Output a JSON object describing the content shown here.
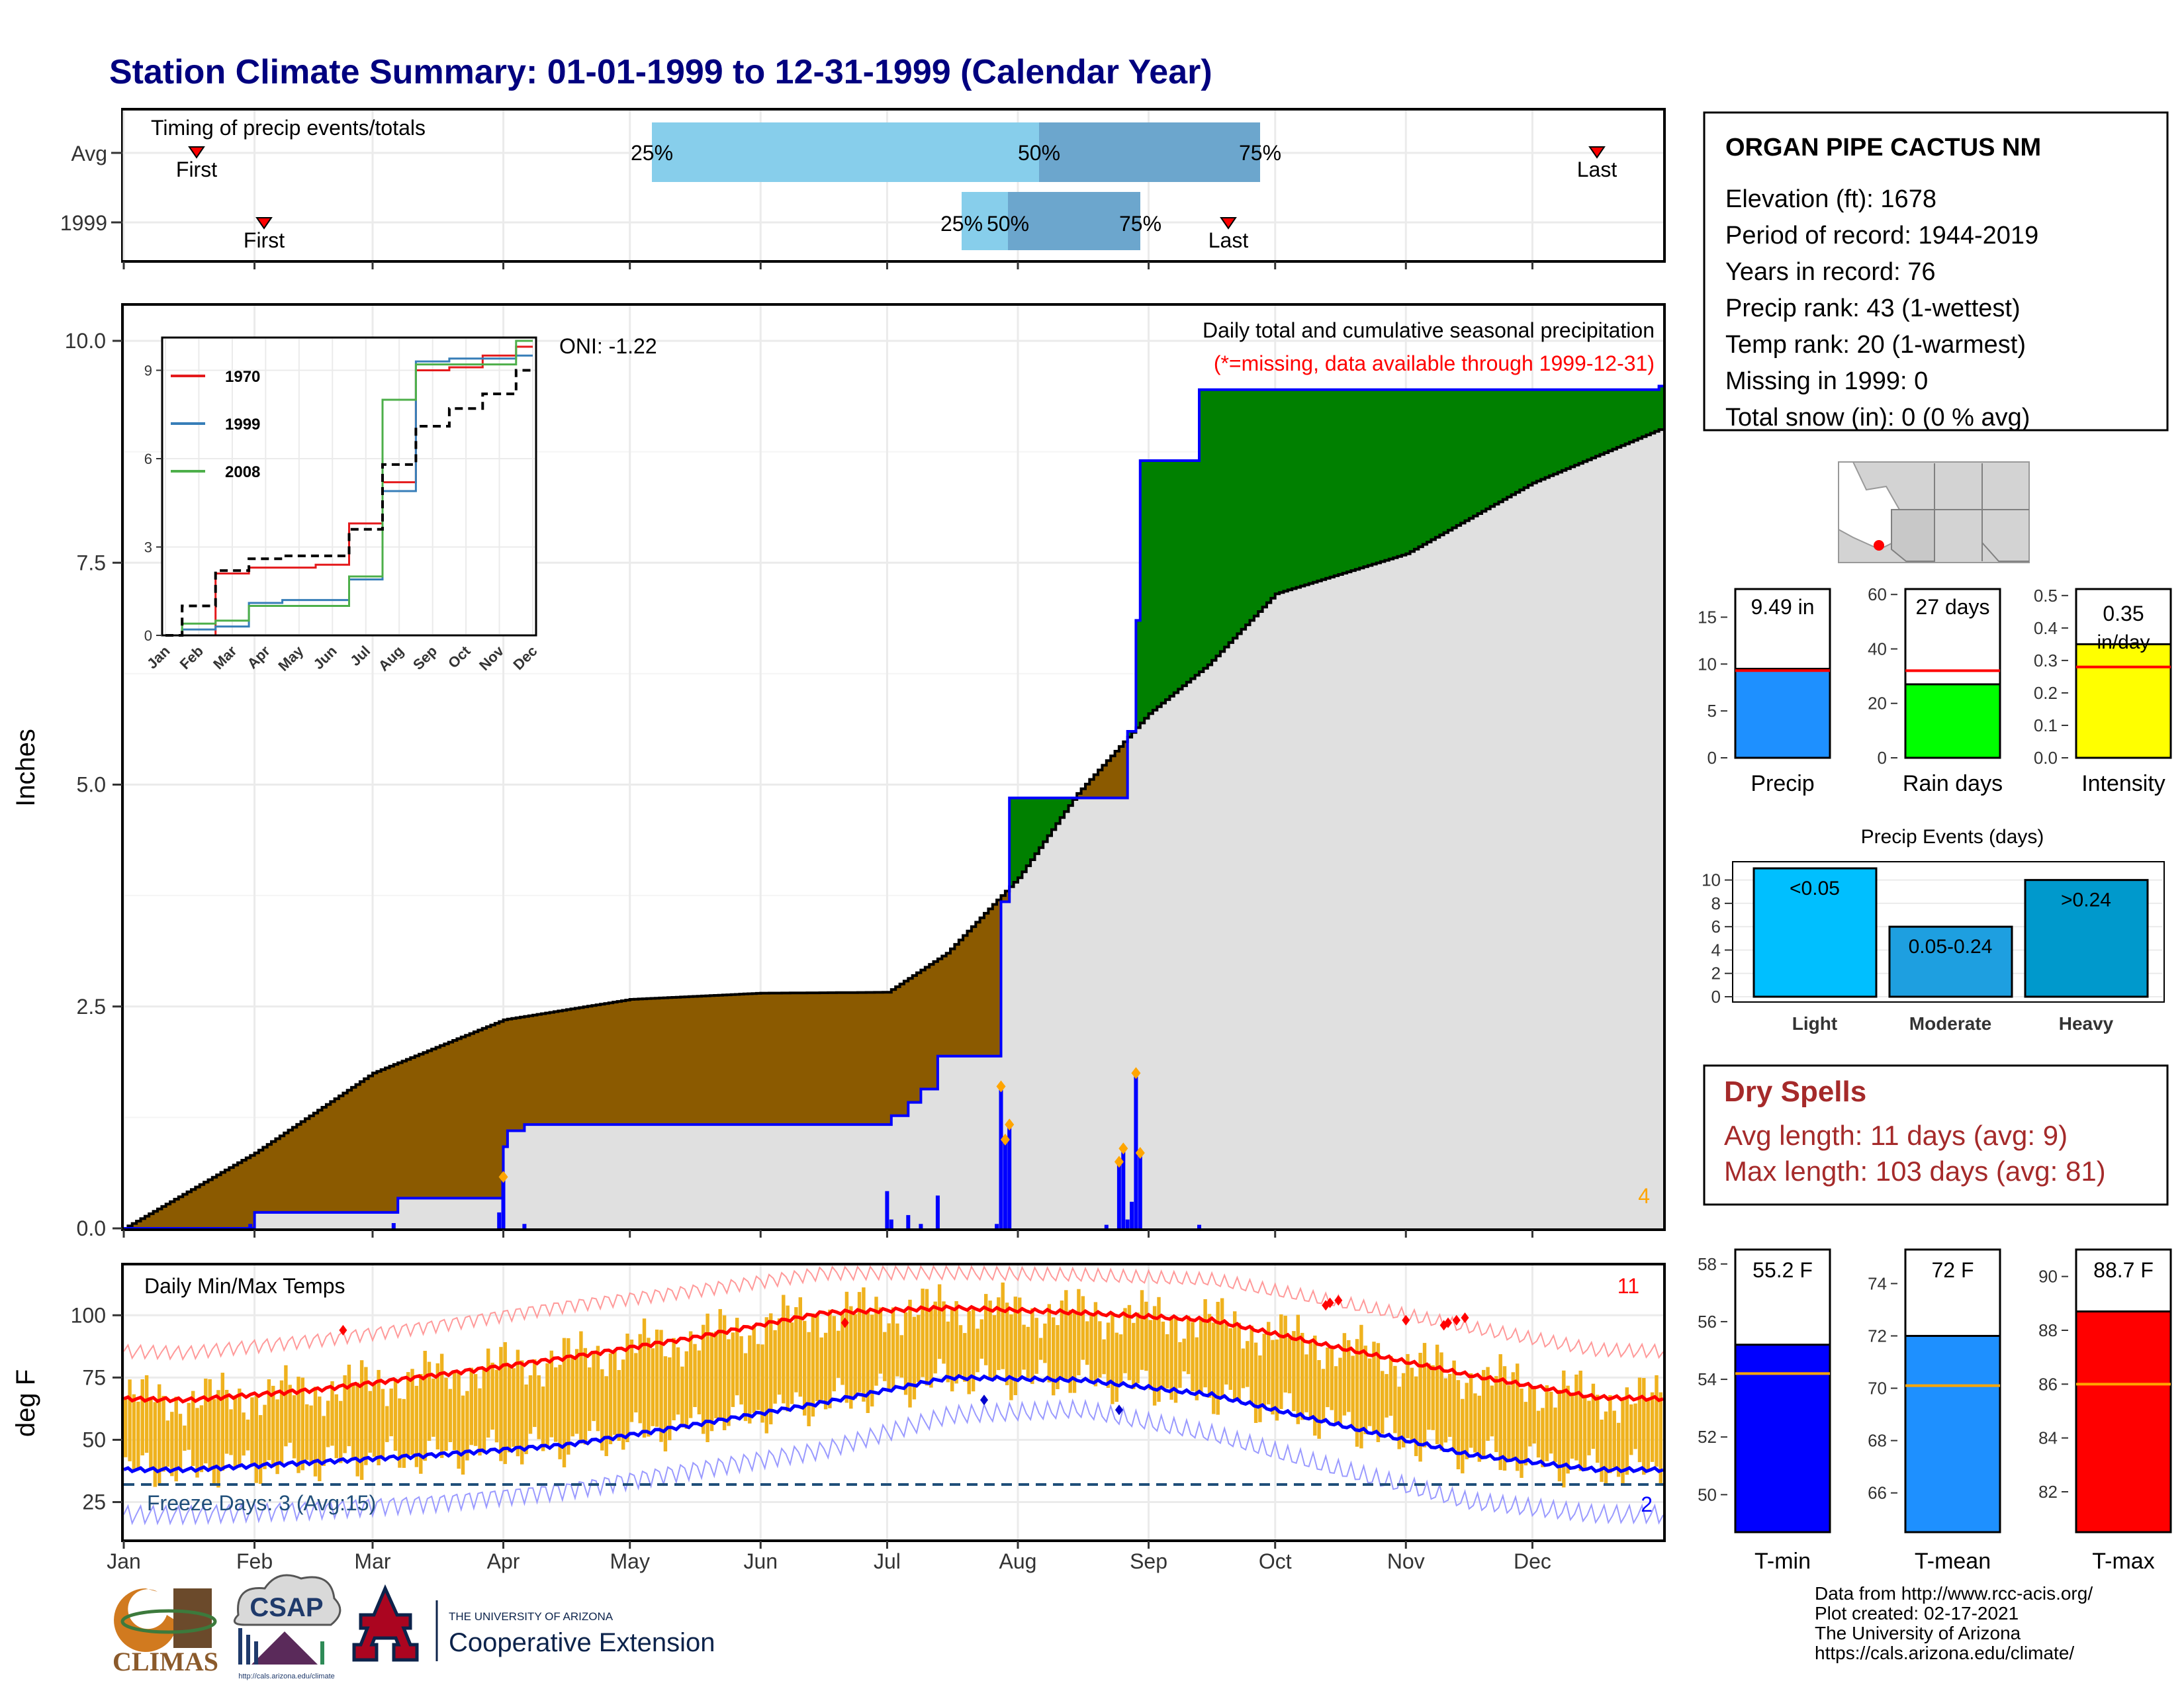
{
  "title": "Station Climate Summary: 01-01-1999 to 12-31-1999 (Calendar Year)",
  "station": {
    "name": "ORGAN PIPE CACTUS NM",
    "lines": [
      "Elevation (ft): 1678",
      "Period of record: 1944-2019",
      "Years in record: 76",
      "Precip rank: 43 (1-wettest)",
      "Temp rank: 20 (1-warmest)",
      "Missing in 1999: 0",
      "Total snow (in): 0 (0 % avg)"
    ]
  },
  "colors": {
    "title": "#00007F",
    "precip_1999": "#0000FF",
    "wet_fill": "#008000",
    "dry_fill": "#8B5A00",
    "avg_fill": "#E0E0E0",
    "tmax_bar": "#EFB21E",
    "accent_red": "#FF0000",
    "dry_spell_text": "#A52A2A"
  },
  "timing": {
    "label": "Timing of precip events/totals",
    "rows": [
      "Avg",
      "1999"
    ],
    "first_label": "First",
    "last_label": "Last",
    "pct_labels": [
      "25%",
      "50%",
      "75%"
    ]
  },
  "months": [
    "Jan",
    "Feb",
    "Mar",
    "Apr",
    "May",
    "Jun",
    "Jul",
    "Aug",
    "Sep",
    "Oct",
    "Nov",
    "Dec"
  ],
  "precip_panel": {
    "ylabel": "Inches",
    "yticks": [
      "0.0",
      "2.5",
      "5.0",
      "7.5",
      "10.0"
    ],
    "oni_text": "ONI: -1.22",
    "caption": "Daily total and cumulative seasonal precipitation",
    "missing_note": "(*=missing, data available through 1999-12-31)",
    "corner_count": "4"
  },
  "inset": {
    "legend": [
      "1970",
      "1999",
      "2008"
    ],
    "yticks": [
      "0",
      "3",
      "6",
      "9"
    ],
    "xticks": [
      "Jan",
      "Feb",
      "Mar",
      "Apr",
      "May",
      "Jun",
      "Jul",
      "Aug",
      "Sep",
      "Oct",
      "Nov",
      "Dec"
    ]
  },
  "temp_panel": {
    "label": "Daily Min/Max Temps",
    "ylabel": "deg F",
    "yticks": [
      "25",
      "50",
      "75",
      "100"
    ],
    "max_count": "11",
    "freeze_text": "Freeze Days: 3 (Avg:15)",
    "min_count": "2"
  },
  "summary_bars": {
    "precip": {
      "label": "Precip",
      "value_text": "9.49 in",
      "yticks": [
        "0",
        "5",
        "10",
        "15"
      ]
    },
    "raindays": {
      "label": "Rain days",
      "value_text": "27 days",
      "yticks": [
        "0",
        "20",
        "40",
        "60"
      ]
    },
    "intensity": {
      "label": "Intensity",
      "value_text": "0.35",
      "value_text2": "in/day",
      "yticks": [
        "0.0",
        "0.1",
        "0.2",
        "0.3",
        "0.4",
        "0.5"
      ]
    }
  },
  "events": {
    "title": "Precip Events (days)",
    "categories": [
      "Light",
      "Moderate",
      "Heavy"
    ],
    "bar_labels": [
      "<0.05",
      "0.05-0.24",
      ">0.24"
    ],
    "yticks": [
      "0",
      "2",
      "4",
      "6",
      "8",
      "10"
    ]
  },
  "dry_spells": {
    "title": "Dry Spells",
    "avg_line": "Avg length: 11 days (avg: 9)",
    "max_line": "Max length: 103 days (avg: 81)"
  },
  "temp_bars": {
    "tmin": {
      "label": "T-min",
      "value_text": "55.2 F",
      "yticks": [
        "50",
        "52",
        "54",
        "56",
        "58"
      ]
    },
    "tmean": {
      "label": "T-mean",
      "value_text": "72 F",
      "yticks": [
        "66",
        "68",
        "70",
        "72",
        "74"
      ]
    },
    "tmax": {
      "label": "T-max",
      "value_text": "88.7 F",
      "yticks": [
        "82",
        "84",
        "86",
        "88",
        "90"
      ]
    }
  },
  "credits": [
    "Data from http://www.rcc-acis.org/",
    "Plot created: 02-17-2021",
    "The University of Arizona",
    "https://cals.arizona.edu/climate/"
  ],
  "logos": {
    "climas": "CLIMAS",
    "csap": "CSAP",
    "csap_url": "http://cals.arizona.edu/climate",
    "ua_small": "THE UNIVERSITY OF ARIZONA",
    "ua_big": "Cooperative Extension"
  },
  "chart_data": [
    {
      "type": "area",
      "title": "Daily total and cumulative seasonal precipitation",
      "xlabel": "",
      "ylabel": "Inches",
      "ylim": [
        0,
        10.5
      ],
      "x_range": [
        "1999-01-01",
        "1999-12-31"
      ],
      "series": [
        {
          "name": "1999 cumulative",
          "x": [
            "1999-01-01",
            "1999-01-31",
            "1999-02-01",
            "1999-03-06",
            "1999-03-07",
            "1999-03-31",
            "1999-04-01",
            "1999-04-02",
            "1999-04-06",
            "1999-07-01",
            "1999-07-02",
            "1999-07-06",
            "1999-07-09",
            "1999-07-13",
            "1999-07-17",
            "1999-07-27",
            "1999-07-28",
            "1999-07-30",
            "1999-08-25",
            "1999-08-27",
            "1999-08-29",
            "1999-08-30",
            "1999-09-13",
            "1999-12-31"
          ],
          "values": [
            0,
            0,
            0.18,
            0.18,
            0.34,
            0.34,
            0.92,
            1.1,
            1.17,
            1.17,
            1.27,
            1.42,
            1.57,
            1.94,
            1.94,
            1.94,
            3.68,
            4.85,
            4.85,
            5.6,
            6.85,
            8.65,
            9.45,
            9.49
          ]
        },
        {
          "name": "Average cumulative",
          "x": [
            "1999-01-01",
            "1999-02-01",
            "1999-03-01",
            "1999-04-01",
            "1999-05-01",
            "1999-06-01",
            "1999-07-01",
            "1999-07-15",
            "1999-08-01",
            "1999-08-15",
            "1999-09-01",
            "1999-09-15",
            "1999-10-01",
            "1999-11-01",
            "1999-12-01",
            "1999-12-31"
          ],
          "values": [
            0,
            0.85,
            1.75,
            2.35,
            2.58,
            2.65,
            2.66,
            3.1,
            3.95,
            4.9,
            5.8,
            6.35,
            7.15,
            7.6,
            8.4,
            9.0
          ]
        }
      ],
      "daily_bars": {
        "name": "1999 daily",
        "x": [
          "1999-01-31",
          "1999-03-06",
          "1999-03-31",
          "1999-04-01",
          "1999-04-06",
          "1999-07-01",
          "1999-07-02",
          "1999-07-06",
          "1999-07-09",
          "1999-07-13",
          "1999-07-27",
          "1999-07-28",
          "1999-07-29",
          "1999-07-30",
          "1999-08-22",
          "1999-08-25",
          "1999-08-26",
          "1999-08-27",
          "1999-08-28",
          "1999-08-29",
          "1999-08-30",
          "1999-09-13"
        ],
        "values": [
          0.05,
          0.06,
          0.18,
          0.58,
          0.05,
          0.42,
          0.1,
          0.15,
          0.05,
          0.37,
          0.05,
          1.6,
          1.0,
          1.17,
          0.04,
          0.75,
          0.9,
          0.1,
          0.3,
          1.75,
          0.85,
          0.04
        ]
      },
      "oni": -1.22
    },
    {
      "type": "line",
      "title": "",
      "ylim": [
        0,
        10
      ],
      "yticks": [
        0,
        3,
        6,
        9
      ],
      "categories": [
        "Jan",
        "Feb",
        "Mar",
        "Apr",
        "May",
        "Jun",
        "Jul",
        "Aug",
        "Sep",
        "Oct",
        "Nov",
        "Dec"
      ],
      "series": [
        {
          "name": "1970",
          "values": [
            0,
            0,
            2.1,
            2.3,
            2.3,
            2.4,
            3.8,
            5.2,
            9.0,
            9.1,
            9.5,
            9.8
          ]
        },
        {
          "name": "1999",
          "values": [
            0,
            0.2,
            0.3,
            1.1,
            1.2,
            1.2,
            1.9,
            4.9,
            9.3,
            9.4,
            9.4,
            9.5
          ]
        },
        {
          "name": "2008",
          "values": [
            0,
            0.4,
            0.5,
            1.0,
            1.0,
            1.0,
            2.0,
            8.0,
            9.2,
            9.2,
            9.2,
            10.0
          ]
        },
        {
          "values": [
            0,
            1.0,
            2.2,
            2.6,
            2.7,
            2.7,
            3.6,
            5.8,
            7.1,
            7.7,
            8.2,
            9.0
          ]
        }
      ]
    },
    {
      "type": "bar",
      "title": "Daily Min/Max Temps",
      "ylabel": "deg F",
      "ylim": [
        10,
        120
      ],
      "categories": [
        "Jan",
        "Feb",
        "Mar",
        "Apr",
        "May",
        "Jun",
        "Jul",
        "Aug",
        "Sep",
        "Oct",
        "Nov",
        "Dec"
      ],
      "series": [
        {
          "name": "Avg max",
          "values": [
            66,
            70,
            76,
            83,
            91,
            101,
            103,
            101,
            98,
            87,
            76,
            67
          ]
        },
        {
          "name": "Avg min",
          "values": [
            38,
            41,
            44,
            48,
            56,
            65,
            75,
            74,
            68,
            56,
            44,
            38
          ]
        },
        {
          "name": "Record max",
          "values": [
            85,
            90,
            96,
            104,
            110,
            117,
            117,
            116,
            114,
            105,
            95,
            86
          ]
        },
        {
          "name": "Record min",
          "values": [
            20,
            22,
            25,
            30,
            38,
            46,
            60,
            62,
            52,
            38,
            25,
            20
          ]
        }
      ],
      "freeze_days": 3,
      "freeze_days_avg": 15
    },
    {
      "type": "bar",
      "categories": [
        "Precip"
      ],
      "values": [
        9.49
      ],
      "average": 9.3,
      "ylim": [
        0,
        18
      ]
    },
    {
      "type": "bar",
      "categories": [
        "Rain days"
      ],
      "values": [
        27
      ],
      "average": 32,
      "ylim": [
        0,
        62
      ]
    },
    {
      "type": "bar",
      "categories": [
        "Intensity"
      ],
      "values": [
        0.35
      ],
      "average": 0.28,
      "ylim": [
        0,
        0.52
      ]
    },
    {
      "type": "bar",
      "title": "Precip Events (days)",
      "categories": [
        "Light",
        "Moderate",
        "Heavy"
      ],
      "values": [
        11,
        6,
        10
      ],
      "ylim": [
        0,
        11
      ]
    },
    {
      "type": "bar",
      "categories": [
        "T-min"
      ],
      "values": [
        55.2
      ],
      "average": 54.2,
      "ylim": [
        48.7,
        58.5
      ]
    },
    {
      "type": "bar",
      "categories": [
        "T-mean"
      ],
      "values": [
        72
      ],
      "average": 70.1,
      "ylim": [
        64.5,
        75.3
      ]
    },
    {
      "type": "bar",
      "categories": [
        "T-max"
      ],
      "values": [
        88.7
      ],
      "average": 86,
      "ylim": [
        80.5,
        91.0
      ]
    }
  ]
}
